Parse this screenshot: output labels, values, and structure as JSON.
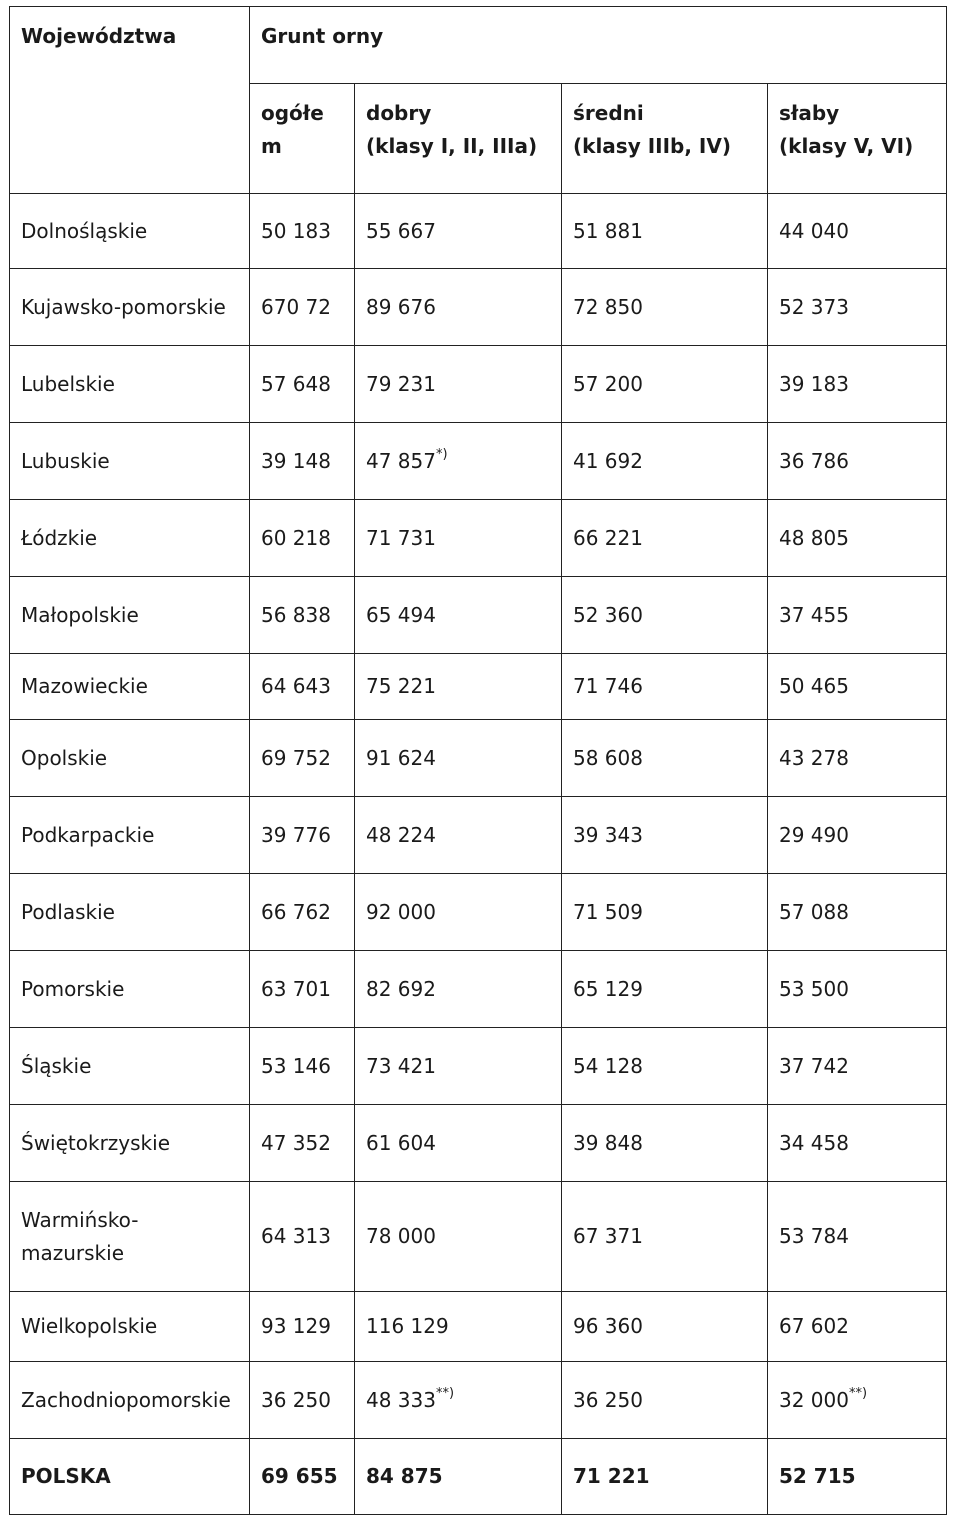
{
  "header": {
    "region_col": "Województwa",
    "group": "Grunt orny",
    "columns": [
      {
        "line1": "ogółem",
        "line2": ""
      },
      {
        "line1": "dobry",
        "line2": "(klasy I, II, IIIa)"
      },
      {
        "line1": "średni",
        "line2": "(klasy IIIb, IV)"
      },
      {
        "line1": "słaby",
        "line2": "(klasy V, VI)"
      }
    ]
  },
  "rows": [
    {
      "name": "Dolnośląskie",
      "v": [
        "50 183",
        "55 667",
        "51 881",
        "44 040"
      ],
      "n": [
        "",
        "",
        "",
        ""
      ]
    },
    {
      "name": "Kujawsko-pomorskie",
      "v": [
        "670 72",
        "89 676",
        "72 850",
        "52 373"
      ],
      "n": [
        "",
        "",
        "",
        ""
      ]
    },
    {
      "name": "Lubelskie",
      "v": [
        "57 648",
        "79 231",
        "57 200",
        "39 183"
      ],
      "n": [
        "",
        "",
        "",
        ""
      ]
    },
    {
      "name": "Lubuskie",
      "v": [
        "39 148",
        "47 857",
        "41 692",
        "36 786"
      ],
      "n": [
        "",
        "*)",
        "",
        ""
      ]
    },
    {
      "name": "Łódzkie",
      "v": [
        "60 218",
        "71 731",
        "66 221",
        "48 805"
      ],
      "n": [
        "",
        "",
        "",
        ""
      ]
    },
    {
      "name": "Małopolskie",
      "v": [
        "56 838",
        "65 494",
        "52 360",
        "37 455"
      ],
      "n": [
        "",
        "",
        "",
        ""
      ]
    },
    {
      "name": "Mazowieckie",
      "v": [
        "64 643",
        "75 221",
        "71 746",
        "50 465"
      ],
      "n": [
        "",
        "",
        "",
        ""
      ]
    },
    {
      "name": "Opolskie",
      "v": [
        "69 752",
        "91 624",
        "58 608",
        "43 278"
      ],
      "n": [
        "",
        "",
        "",
        ""
      ]
    },
    {
      "name": "Podkarpackie",
      "v": [
        "39 776",
        "48 224",
        "39 343",
        "29 490"
      ],
      "n": [
        "",
        "",
        "",
        ""
      ]
    },
    {
      "name": "Podlaskie",
      "v": [
        "66 762",
        "92 000",
        "71 509",
        "57 088"
      ],
      "n": [
        "",
        "",
        "",
        ""
      ]
    },
    {
      "name": "Pomorskie",
      "v": [
        "63 701",
        "82 692",
        "65 129",
        "53 500"
      ],
      "n": [
        "",
        "",
        "",
        ""
      ]
    },
    {
      "name": "Śląskie",
      "v": [
        "53 146",
        "73 421",
        "54 128",
        "37 742"
      ],
      "n": [
        "",
        "",
        "",
        ""
      ]
    },
    {
      "name": "Świętokrzyskie",
      "v": [
        "47 352",
        "61 604",
        "39 848",
        "34 458"
      ],
      "n": [
        "",
        "",
        "",
        ""
      ]
    },
    {
      "name": "Warmińsko-mazurskie",
      "v": [
        "64 313",
        "78 000",
        "67 371",
        "53 784"
      ],
      "n": [
        "",
        "",
        "",
        ""
      ]
    },
    {
      "name": "Wielkopolskie",
      "v": [
        "93 129",
        "116 129",
        "96 360",
        "67 602"
      ],
      "n": [
        "",
        "",
        "",
        ""
      ]
    },
    {
      "name": "Zachodniopomorskie",
      "v": [
        "36 250",
        "48 333",
        "36 250",
        "32 000"
      ],
      "n": [
        "",
        "**)",
        "",
        "**)"
      ]
    }
  ],
  "total": {
    "name": "POLSKA",
    "v": [
      "69 655",
      "84 875",
      "71 221",
      "52 715"
    ]
  }
}
